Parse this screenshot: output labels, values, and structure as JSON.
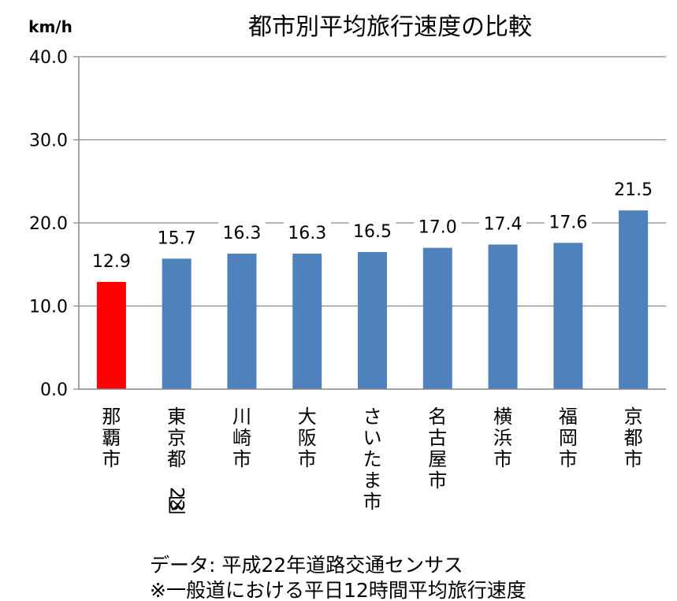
{
  "chart_data": {
    "type": "bar",
    "title": "都市別平均旅行速度の比較",
    "ylabel": "km/h",
    "xlabel": "",
    "ylim": [
      0,
      40
    ],
    "yticks": [
      "0.0",
      "10.0",
      "20.0",
      "30.0",
      "40.0"
    ],
    "grid": true,
    "categories": [
      "那覇市",
      "東京都23区",
      "川崎市",
      "大阪市",
      "さいたま市",
      "名古屋市",
      "横浜市",
      "福岡市",
      "京都市"
    ],
    "values": [
      12.9,
      15.7,
      16.3,
      16.3,
      16.5,
      17.0,
      17.4,
      17.6,
      21.5
    ],
    "value_labels": [
      "12.9",
      "15.7",
      "16.3",
      "16.3",
      "16.5",
      "17.0",
      "17.4",
      "17.6",
      "21.5"
    ],
    "colors": [
      "#ff0000",
      "#4f81bd",
      "#4f81bd",
      "#4f81bd",
      "#4f81bd",
      "#4f81bd",
      "#4f81bd",
      "#4f81bd",
      "#4f81bd"
    ]
  },
  "notes": {
    "source": "データ: 平成22年道路交通センサス",
    "remark": "※一般道における平日12時間平均旅行速度"
  }
}
